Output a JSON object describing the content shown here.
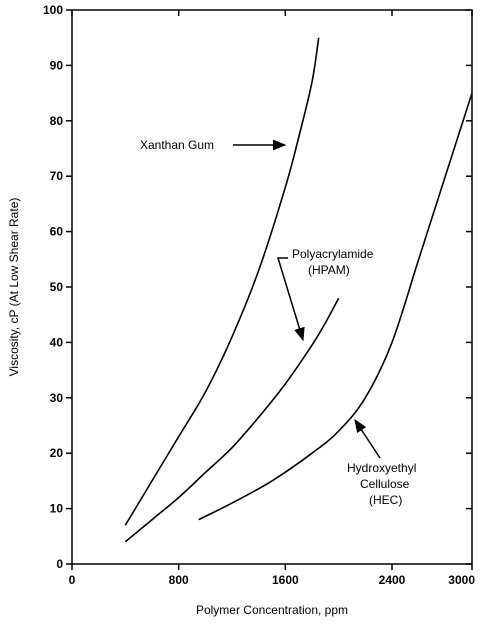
{
  "chart_data": {
    "type": "line",
    "xlabel": "Polymer Concentration, ppm",
    "ylabel": "Viscosity, cP (At Low Shear Rate)",
    "xlim": [
      0,
      3000
    ],
    "ylim": [
      0,
      100
    ],
    "x_ticks": [
      0,
      800,
      1600,
      2400,
      3000
    ],
    "y_ticks": [
      0,
      10,
      20,
      30,
      40,
      50,
      60,
      70,
      80,
      90,
      100
    ],
    "grid": false,
    "series": [
      {
        "name": "Xanthan Gum",
        "x": [
          400,
          600,
          800,
          1000,
          1200,
          1400,
          1600,
          1700,
          1800,
          1850
        ],
        "y": [
          7,
          15,
          23,
          31,
          41,
          53,
          68,
          77,
          87,
          95
        ]
      },
      {
        "name": "Polyacrylamide (HPAM)",
        "x": [
          400,
          600,
          800,
          1000,
          1200,
          1400,
          1600,
          1800,
          1900,
          2000
        ],
        "y": [
          4,
          8,
          12,
          16.5,
          21,
          26.5,
          32.5,
          39.5,
          43.5,
          48
        ]
      },
      {
        "name": "Hydroxyethyl Cellulose (HEC)",
        "x": [
          950,
          1200,
          1500,
          1800,
          2000,
          2200,
          2400,
          2600,
          2800,
          3000
        ],
        "y": [
          8,
          11,
          15,
          20,
          24,
          30,
          40,
          55,
          70,
          85
        ]
      }
    ],
    "annotations": {
      "xanthan": "Xanthan Gum",
      "hpam_line1": "Polyacrylamide",
      "hpam_line2": "(HPAM)",
      "hec_line1": "Hydroxyethyl",
      "hec_line2": "Cellulose",
      "hec_line3": "(HEC)"
    }
  }
}
